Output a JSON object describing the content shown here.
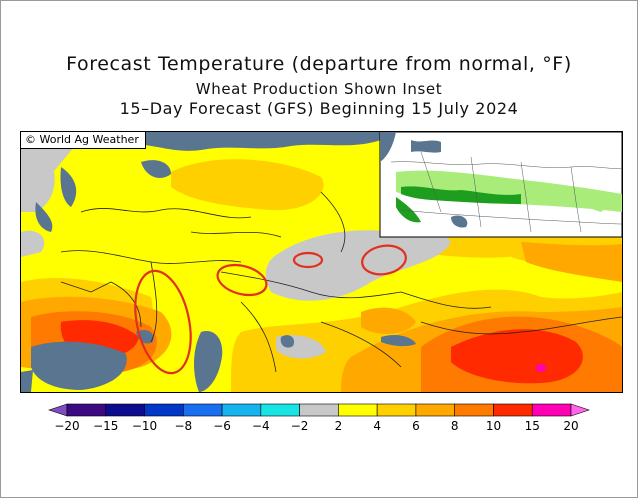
{
  "titles": {
    "line1": "Forecast Temperature (departure from normal, °F)",
    "line2": "Wheat Production Shown Inset",
    "line3": "15–Day Forecast (GFS) Beginning 15 July 2024"
  },
  "copyright": "© World Ag Weather",
  "legend": {
    "tick_labels": [
      "−20",
      "−15",
      "−10",
      "−8",
      "−6",
      "−4",
      "−2",
      "2",
      "4",
      "6",
      "8",
      "10",
      "15",
      "20"
    ],
    "colors": [
      "#7e4dbe",
      "#3b0a83",
      "#0d0c8f",
      "#0037c9",
      "#1a6ff0",
      "#17b3ee",
      "#19e3e3",
      "#c8c8c8",
      "#ffff00",
      "#ffd000",
      "#ffa800",
      "#ff7a00",
      "#ff2a00",
      "#ff00b4",
      "#ff66e8"
    ]
  },
  "palette": {
    "water": "#5a7590",
    "near_normal": "#c8c8c8",
    "warm_2_4": "#ffff00",
    "warm_4_6": "#ffd000",
    "warm_6_8": "#ffa800",
    "warm_8_10": "#ff7a00",
    "warm_10_15": "#ff2a00",
    "warm_15_20": "#ff00b4",
    "highlight_circle": "#e03020",
    "wheat_light": "#a9ec7a",
    "wheat_dark": "#1e9e1e"
  }
}
